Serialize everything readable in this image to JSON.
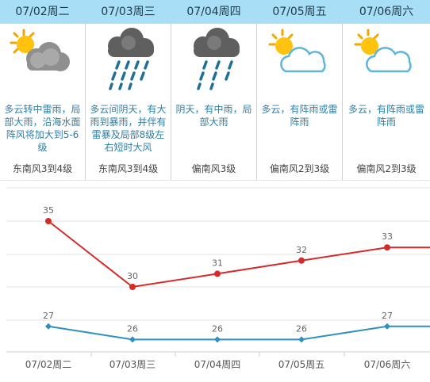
{
  "days": [
    {
      "date": "07/02周二",
      "icon": "partly-cloudy-thunder-icon",
      "desc": "多云转中雷雨，局部大雨，沿海水面阵风将加大到5-6级",
      "wind": "东南风3到4级"
    },
    {
      "date": "07/03周三",
      "icon": "heavy-rain-icon",
      "desc": "多云间阴天，有大雨到暴雨，并伴有雷暴及局部8级左右短时大风",
      "wind": "东南风3到4级"
    },
    {
      "date": "07/04周四",
      "icon": "moderate-rain-icon",
      "desc": "阴天，有中雨，局部大雨",
      "wind": "偏南风3级"
    },
    {
      "date": "07/05周五",
      "icon": "partly-cloudy-icon",
      "desc": "多云，有阵雨或雷阵雨",
      "wind": "偏南风2到3级"
    },
    {
      "date": "07/06周六",
      "icon": "partly-cloudy-icon",
      "desc": "多云，有阵雨或雷阵雨",
      "wind": "偏南风2到3级"
    }
  ],
  "colors": {
    "high": "#d42a2a",
    "low": "#2f8fbf",
    "header": "#a9dff6",
    "desc": "#2c7fa6"
  },
  "chart_data": {
    "type": "line",
    "categories": [
      "07/02周二",
      "07/03周三",
      "07/04周四",
      "07/05周五",
      "07/06周六"
    ],
    "series": [
      {
        "values": [
          35,
          30,
          31,
          32,
          33
        ]
      },
      {
        "values": [
          27,
          26,
          26,
          26,
          27
        ]
      }
    ],
    "ylim": [
      24,
      37
    ],
    "grid": true
  }
}
